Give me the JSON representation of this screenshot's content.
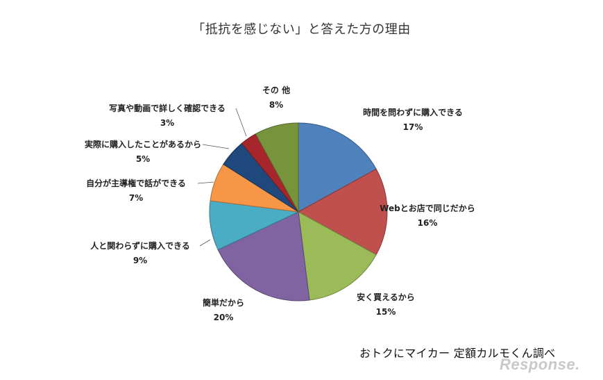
{
  "chart_data": {
    "type": "pie",
    "title": "「抵抗を感じない」と答えた方の理由",
    "slices": [
      {
        "label": "時間を問わずに購入できる",
        "value": 17,
        "value_label": "17%",
        "color": "#4f81bd"
      },
      {
        "label": "Webとお店で同じだから",
        "value": 16,
        "value_label": "16%",
        "color": "#c0504d"
      },
      {
        "label": "安く買えるから",
        "value": 15,
        "value_label": "15%",
        "color": "#9bbb59"
      },
      {
        "label": "簡単だから",
        "value": 20,
        "value_label": "20%",
        "color": "#8064a2"
      },
      {
        "label": "人と関わらずに購入できる",
        "value": 9,
        "value_label": "9%",
        "color": "#4bacc6"
      },
      {
        "label": "自分が主導権で話ができる",
        "value": 7,
        "value_label": "7%",
        "color": "#f79646"
      },
      {
        "label": "実際に購入したことがあるから",
        "value": 5,
        "value_label": "5%",
        "color": "#1f497d"
      },
      {
        "label": "写真や動画で詳しく確認できる",
        "value": 3,
        "value_label": "3%",
        "color": "#a6262b"
      },
      {
        "label": "その 他",
        "value": 8,
        "value_label": "8%",
        "color": "#77933c"
      }
    ]
  },
  "credit": "おトクにマイカー 定額カルモくん調べ",
  "watermark": "Response."
}
